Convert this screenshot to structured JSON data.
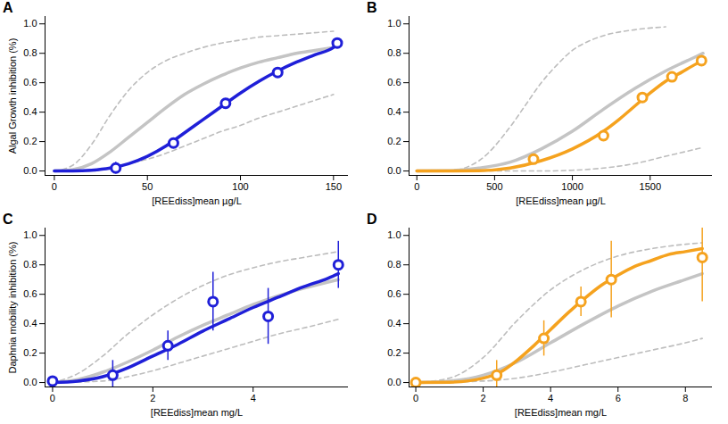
{
  "chart_data": [
    {
      "type": "line",
      "title": "A",
      "xlabel": "[REEdiss]mean µg/L",
      "ylabel": "Algal Growth inhibition (%)",
      "xlim": [
        -5,
        158
      ],
      "xticks": [
        0,
        50,
        100,
        150
      ],
      "ylim": [
        -0.03,
        1.05
      ],
      "yticks": [
        {
          "value": 0,
          "label": "0.0"
        },
        0.2,
        0.4,
        0.6,
        0.8,
        {
          "value": 1,
          "label": "1.0"
        }
      ],
      "series": [
        {
          "type": "line",
          "color": "#bdbdbd",
          "line_style": "dashed",
          "x": [
            0,
            10,
            20,
            30,
            40,
            50,
            60,
            70,
            80,
            90,
            100,
            110,
            120,
            130,
            140,
            150
          ],
          "values": [
            0,
            0.04,
            0.18,
            0.38,
            0.55,
            0.67,
            0.75,
            0.8,
            0.84,
            0.87,
            0.89,
            0.91,
            0.92,
            0.93,
            0.94,
            0.95
          ]
        },
        {
          "type": "line",
          "color": "#bdbdbd",
          "line_style": "dashed",
          "x": [
            0,
            20,
            30,
            40,
            50,
            60,
            70,
            80,
            90,
            100,
            110,
            120,
            130,
            140,
            150
          ],
          "values": [
            0,
            0,
            0.02,
            0.05,
            0.08,
            0.12,
            0.17,
            0.22,
            0.27,
            0.31,
            0.36,
            0.4,
            0.44,
            0.48,
            0.52
          ]
        },
        {
          "type": "line",
          "color": "#c4c4c4",
          "line_style": "solid",
          "x": [
            0,
            10,
            20,
            30,
            40,
            50,
            60,
            70,
            80,
            90,
            100,
            110,
            120,
            130,
            140,
            150
          ],
          "values": [
            0,
            0.01,
            0.05,
            0.13,
            0.23,
            0.33,
            0.43,
            0.52,
            0.59,
            0.65,
            0.7,
            0.74,
            0.77,
            0.8,
            0.82,
            0.84
          ]
        },
        {
          "type": "line",
          "color": "#1f1fd8",
          "line_style": "solid",
          "x": [
            0,
            10,
            20,
            30,
            40,
            50,
            60,
            70,
            80,
            90,
            100,
            110,
            120,
            130,
            140,
            150,
            152
          ],
          "values": [
            0,
            0,
            0.005,
            0.02,
            0.05,
            0.1,
            0.17,
            0.26,
            0.35,
            0.44,
            0.53,
            0.61,
            0.68,
            0.74,
            0.79,
            0.84,
            0.86
          ]
        },
        {
          "type": "scatter",
          "color": "#1f1fd8",
          "marker": "open circle",
          "x": [
            33,
            64,
            92,
            120,
            152
          ],
          "values": [
            0.02,
            0.19,
            0.46,
            0.67,
            0.87
          ],
          "errors": [
            0.04,
            0.01,
            0.01,
            0.01,
            0.01
          ]
        }
      ]
    },
    {
      "type": "line",
      "title": "B",
      "xlabel": "[REEdiss]mean µg/L",
      "xlim": [
        -50,
        1900
      ],
      "xticks": [
        0,
        500,
        1000,
        1500
      ],
      "ylim": [
        -0.03,
        1.05
      ],
      "yticks": [
        {
          "value": 0,
          "label": "0.0"
        },
        0.2,
        0.4,
        0.6,
        0.8,
        {
          "value": 1,
          "label": "1.0"
        }
      ],
      "series": [
        {
          "type": "line",
          "color": "#bdbdbd",
          "line_style": "dashed",
          "x": [
            0,
            200,
            400,
            600,
            700,
            800,
            900,
            1000,
            1100,
            1200,
            1400,
            1600
          ],
          "values": [
            0,
            0,
            0.07,
            0.3,
            0.45,
            0.6,
            0.72,
            0.82,
            0.88,
            0.92,
            0.96,
            0.98
          ]
        },
        {
          "type": "line",
          "color": "#bdbdbd",
          "line_style": "dashed",
          "x": [
            0,
            800,
            1000,
            1200,
            1400,
            1600,
            1800,
            1840
          ],
          "values": [
            0,
            0,
            0.005,
            0.02,
            0.05,
            0.1,
            0.15,
            0.16
          ]
        },
        {
          "type": "line",
          "color": "#c4c4c4",
          "line_style": "solid",
          "x": [
            0,
            200,
            400,
            600,
            800,
            1000,
            1200,
            1400,
            1600,
            1800,
            1840
          ],
          "values": [
            0,
            0.002,
            0.02,
            0.06,
            0.15,
            0.27,
            0.42,
            0.56,
            0.68,
            0.78,
            0.8
          ]
        },
        {
          "type": "line",
          "color": "#f5a21e",
          "line_style": "solid",
          "x": [
            0,
            200,
            400,
            600,
            800,
            1000,
            1200,
            1300,
            1400,
            1500,
            1600,
            1700,
            1800,
            1840
          ],
          "values": [
            0,
            0,
            0.002,
            0.02,
            0.07,
            0.15,
            0.27,
            0.35,
            0.44,
            0.53,
            0.61,
            0.67,
            0.73,
            0.75
          ]
        },
        {
          "type": "scatter",
          "color": "#f5a21e",
          "marker": "open circle",
          "x": [
            750,
            1200,
            1450,
            1640,
            1830
          ],
          "values": [
            0.08,
            0.24,
            0.5,
            0.64,
            0.75
          ],
          "errors": [
            0.01,
            0.01,
            0.01,
            0.01,
            0.01
          ]
        }
      ]
    },
    {
      "type": "line",
      "title": "C",
      "xlabel": "[REEdiss]mean mg/L",
      "ylabel": "Daphnia mobility inhibition (%)",
      "xlim": [
        -0.15,
        5.9
      ],
      "xticks": [
        0,
        2,
        4
      ],
      "ylim": [
        -0.03,
        1.05
      ],
      "yticks": [
        {
          "value": 0,
          "label": "0.0"
        },
        0.2,
        0.4,
        0.6,
        0.8,
        {
          "value": 1,
          "label": "1.0"
        }
      ],
      "series": [
        {
          "type": "line",
          "color": "#bdbdbd",
          "line_style": "dashed",
          "x": [
            0,
            0.5,
            1,
            1.5,
            2,
            2.5,
            3,
            3.5,
            4,
            4.5,
            5,
            5.7
          ],
          "values": [
            0,
            0.06,
            0.18,
            0.33,
            0.46,
            0.57,
            0.66,
            0.73,
            0.78,
            0.82,
            0.85,
            0.89
          ]
        },
        {
          "type": "line",
          "color": "#bdbdbd",
          "line_style": "dashed",
          "x": [
            0,
            1,
            1.5,
            2,
            2.5,
            3,
            3.5,
            4,
            4.5,
            5,
            5.7
          ],
          "values": [
            0,
            0.01,
            0.04,
            0.08,
            0.13,
            0.18,
            0.23,
            0.28,
            0.33,
            0.37,
            0.43
          ]
        },
        {
          "type": "line",
          "color": "#c4c4c4",
          "line_style": "solid",
          "x": [
            0,
            0.5,
            1,
            1.5,
            2,
            2.5,
            3,
            3.5,
            4,
            4.5,
            5,
            5.7
          ],
          "values": [
            0,
            0.02,
            0.07,
            0.14,
            0.22,
            0.31,
            0.39,
            0.46,
            0.53,
            0.59,
            0.64,
            0.7
          ]
        },
        {
          "type": "line",
          "color": "#1f1fd8",
          "line_style": "solid",
          "x": [
            0,
            0.5,
            1,
            1.5,
            2,
            2.5,
            3,
            3.5,
            4,
            4.5,
            5,
            5.5,
            5.7
          ],
          "values": [
            0,
            0.01,
            0.04,
            0.1,
            0.18,
            0.26,
            0.35,
            0.43,
            0.51,
            0.58,
            0.65,
            0.71,
            0.74
          ]
        },
        {
          "type": "scatter",
          "color": "#1f1fd8",
          "marker": "open circle",
          "x": [
            0,
            1.2,
            2.3,
            3.2,
            4.3,
            5.7
          ],
          "values": [
            0.01,
            0.05,
            0.25,
            0.55,
            0.45,
            0.8
          ],
          "errors": [
            0.02,
            0.1,
            0.1,
            0.2,
            0.19,
            0.16
          ]
        }
      ]
    },
    {
      "type": "line",
      "title": "D",
      "xlabel": "[REEdiss]mean mg/L",
      "xlim": [
        -0.2,
        8.8
      ],
      "xticks": [
        0,
        2,
        4,
        6,
        8
      ],
      "ylim": [
        -0.03,
        1.05
      ],
      "yticks": [
        {
          "value": 0,
          "label": "0.0"
        },
        0.2,
        0.4,
        0.6,
        0.8,
        {
          "value": 1,
          "label": "1.0"
        }
      ],
      "series": [
        {
          "type": "line",
          "color": "#bdbdbd",
          "line_style": "dashed",
          "x": [
            0,
            1,
            2,
            3,
            4,
            5,
            6,
            7,
            8,
            8.5
          ],
          "values": [
            0,
            0.03,
            0.17,
            0.42,
            0.63,
            0.77,
            0.86,
            0.91,
            0.94,
            0.95
          ]
        },
        {
          "type": "line",
          "color": "#bdbdbd",
          "line_style": "dashed",
          "x": [
            0,
            2,
            3,
            4,
            5,
            6,
            7,
            8,
            8.5
          ],
          "values": [
            0,
            0.01,
            0.03,
            0.07,
            0.12,
            0.17,
            0.22,
            0.27,
            0.3
          ]
        },
        {
          "type": "line",
          "color": "#c4c4c4",
          "line_style": "solid",
          "x": [
            0,
            1,
            2,
            3,
            4,
            5,
            6,
            7,
            8,
            8.5
          ],
          "values": [
            0,
            0.01,
            0.05,
            0.14,
            0.27,
            0.4,
            0.52,
            0.62,
            0.7,
            0.74
          ]
        },
        {
          "type": "line",
          "color": "#f5a21e",
          "line_style": "solid",
          "x": [
            0,
            1,
            2,
            2.5,
            3,
            3.5,
            4,
            4.5,
            5,
            5.5,
            6,
            6.5,
            7,
            7.5,
            8,
            8.5
          ],
          "values": [
            0,
            0.002,
            0.03,
            0.07,
            0.15,
            0.25,
            0.36,
            0.47,
            0.57,
            0.66,
            0.73,
            0.79,
            0.83,
            0.87,
            0.89,
            0.91
          ]
        },
        {
          "type": "scatter",
          "color": "#f5a21e",
          "marker": "open circle",
          "x": [
            0,
            2.4,
            3.8,
            4.9,
            5.8,
            8.5
          ],
          "values": [
            0,
            0.05,
            0.3,
            0.55,
            0.7,
            0.85
          ],
          "errors": [
            0.01,
            0.1,
            0.12,
            0.1,
            0.26,
            0.3
          ]
        }
      ]
    }
  ]
}
